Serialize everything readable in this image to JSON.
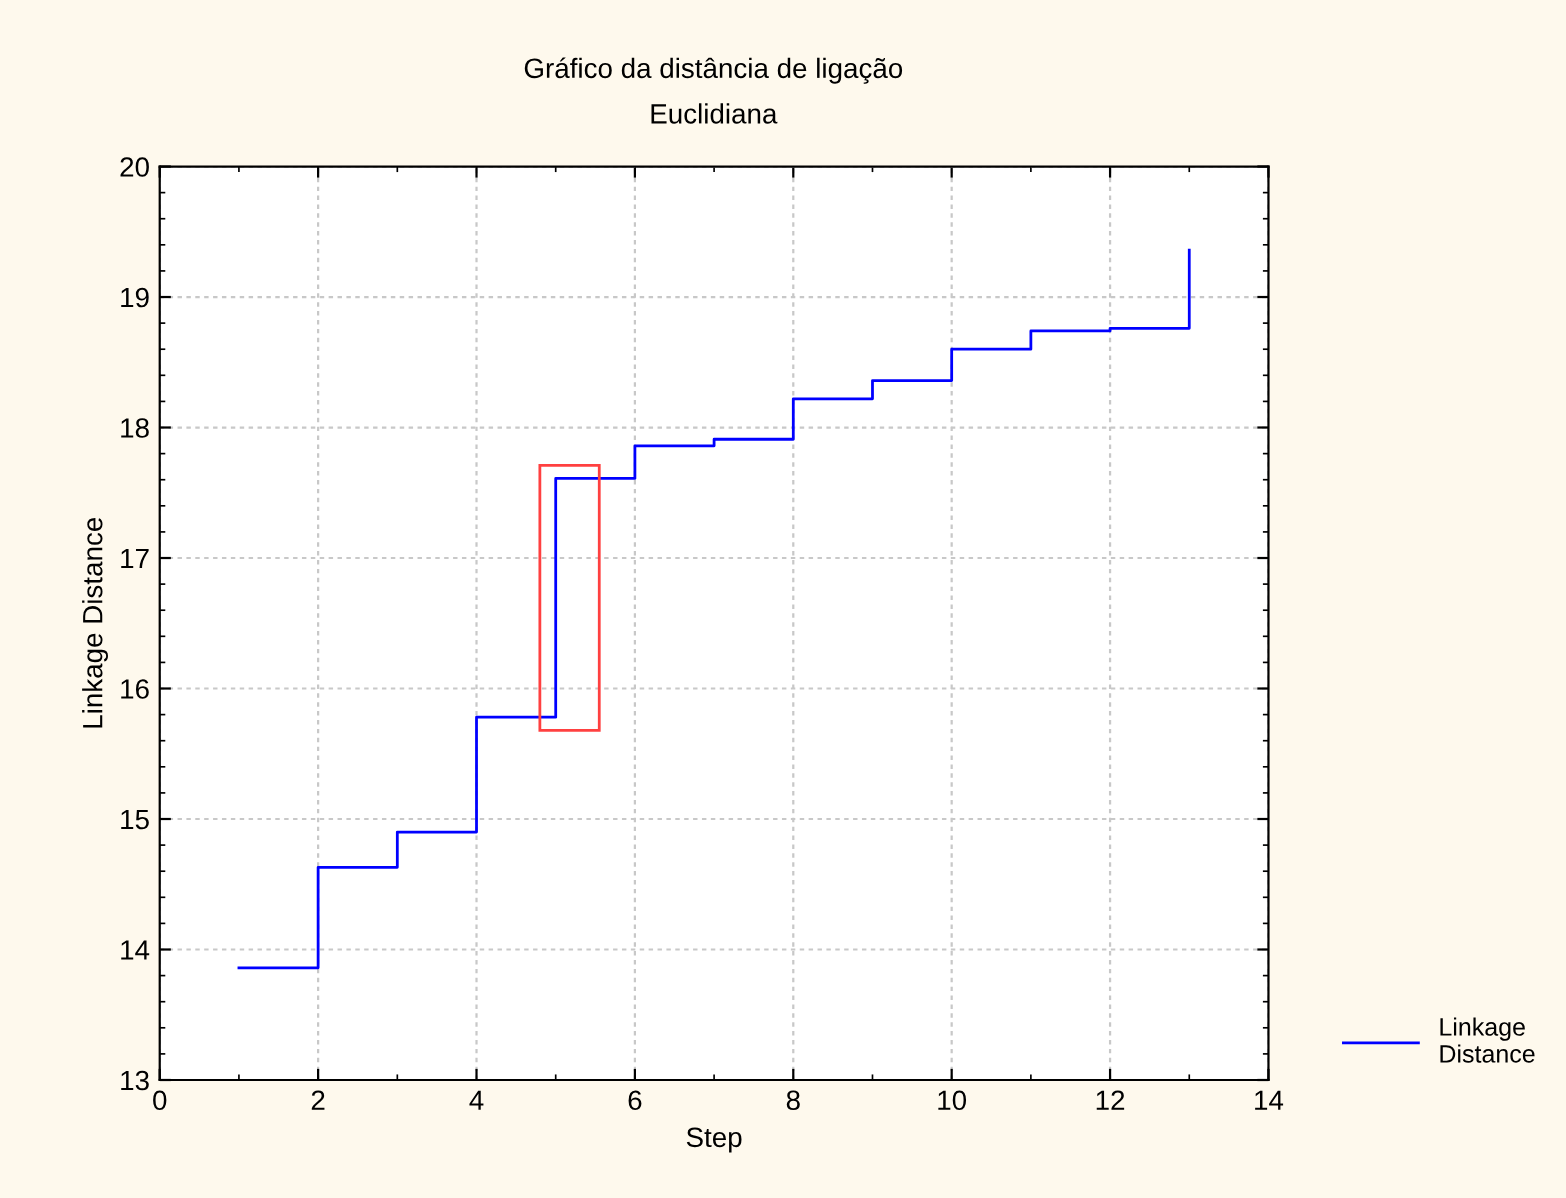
{
  "chart_data": {
    "type": "step",
    "title": "Gráfico da distância de ligação",
    "subtitle": "Euclidiana",
    "xlabel": "Step",
    "ylabel": "Linkage Distance",
    "x": [
      1,
      2,
      3,
      4,
      5,
      6,
      7,
      8,
      9,
      10,
      11,
      12,
      13
    ],
    "series": [
      {
        "name": "Linkage\nDistance",
        "color": "#0000ff",
        "values": [
          13.86,
          14.63,
          14.9,
          15.78,
          17.61,
          17.86,
          17.91,
          18.22,
          18.36,
          18.6,
          18.74,
          18.76,
          19.36
        ]
      }
    ],
    "xlim": [
      0,
      14
    ],
    "xticks": [
      0,
      2,
      4,
      6,
      8,
      10,
      12,
      14
    ],
    "ylim": [
      13,
      20
    ],
    "yticks": [
      13,
      14,
      15,
      16,
      17,
      18,
      19,
      20
    ],
    "grid": true,
    "legend": "bottom right",
    "line_style": "solid",
    "marker": "none"
  }
}
